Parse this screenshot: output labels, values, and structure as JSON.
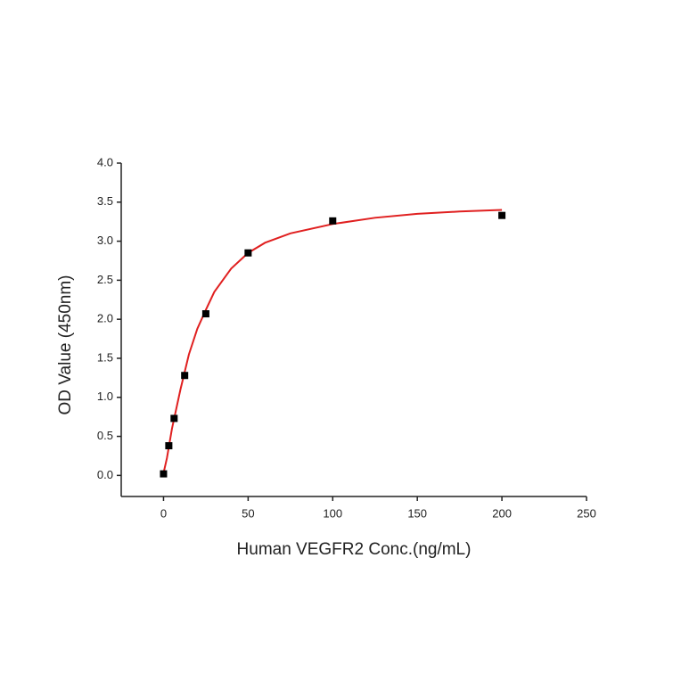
{
  "chart_data": {
    "type": "scatter",
    "x_label": "Human VEGFR2 Conc.(ng/mL)",
    "y_label": "OD Value (450nm)",
    "x": [
      0,
      3.125,
      6.25,
      12.5,
      25,
      50,
      100,
      200
    ],
    "values": [
      0.02,
      0.38,
      0.73,
      1.28,
      2.07,
      2.85,
      3.26,
      3.33
    ],
    "color": "#000000",
    "curve": {
      "x": [
        0,
        2,
        5,
        10,
        15,
        20,
        25,
        30,
        40,
        50,
        60,
        75,
        100,
        125,
        150,
        175,
        200
      ],
      "values": [
        0.03,
        0.22,
        0.6,
        1.1,
        1.55,
        1.88,
        2.12,
        2.35,
        2.65,
        2.85,
        2.98,
        3.1,
        3.22,
        3.3,
        3.35,
        3.38,
        3.4
      ],
      "color": "#e02020"
    },
    "xlim": [
      -25,
      250
    ],
    "xticks": [
      0,
      50,
      100,
      150,
      200,
      250
    ],
    "ylim": [
      -0.27,
      4.0
    ],
    "yticks": [
      {
        "value": 0,
        "label": "0.0"
      },
      {
        "value": 0.5,
        "label": "0.5"
      },
      {
        "value": 1,
        "label": "1.0"
      },
      {
        "value": 1.5,
        "label": "1.5"
      },
      {
        "value": 2,
        "label": "2.0"
      },
      {
        "value": 2.5,
        "label": "2.5"
      },
      {
        "value": 3,
        "label": "3.0"
      },
      {
        "value": 3.5,
        "label": "3.5"
      },
      {
        "value": 4,
        "label": "4.0"
      }
    ]
  }
}
